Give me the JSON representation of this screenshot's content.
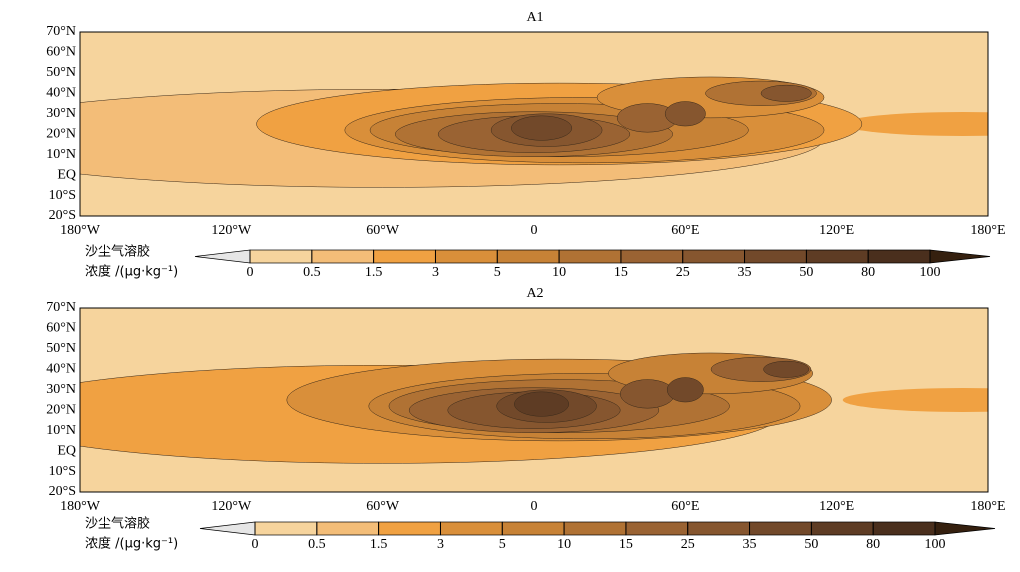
{
  "panels": [
    {
      "title": "A1",
      "lat_labels": [
        "70°N",
        "60°N",
        "50°N",
        "40°N",
        "30°N",
        "20°N",
        "10°N",
        "EQ",
        "10°S",
        "20°S"
      ],
      "lon_labels": [
        "180°W",
        "120°W",
        "60°W",
        "0",
        "60°E",
        "120°E",
        "180°E"
      ]
    },
    {
      "title": "A2",
      "lat_labels": [
        "70°N",
        "60°N",
        "50°N",
        "40°N",
        "30°N",
        "20°N",
        "10°N",
        "EQ",
        "10°S",
        "20°S"
      ],
      "lon_labels": [
        "180°W",
        "120°W",
        "60°W",
        "0",
        "60°E",
        "120°E",
        "180°E"
      ]
    }
  ],
  "colorbar": {
    "title": "沙尘气溶胶",
    "unit": "浓度 /(μg·kg⁻¹)",
    "levels": [
      0,
      0.5,
      1.5,
      3,
      5,
      10,
      15,
      25,
      35,
      50,
      80,
      100
    ],
    "colors": [
      "#e6e6e6",
      "#f6d49d",
      "#f3bd78",
      "#f0a142",
      "#d98f3a",
      "#c78236",
      "#b07234",
      "#9a6333",
      "#86562f",
      "#72492a",
      "#5e3c24",
      "#4a2f1d",
      "#35200f"
    ]
  }
}
